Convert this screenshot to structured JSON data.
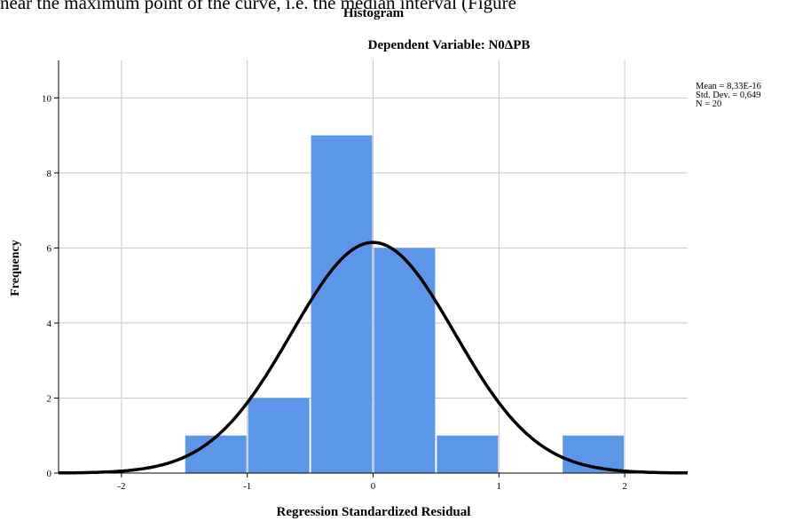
{
  "page": {
    "top_text": "near the maximum point of the curve, i.e. the median interval (Figure"
  },
  "stats": {
    "mean": "Mean = 8,33E-16",
    "std_dev": "Std. Dev. = 0,649",
    "n": "N = 20"
  },
  "colors": {
    "bar_fill": "#5B96E8",
    "curve": "#000000",
    "grid": "#c8c8c8",
    "axis": "#000000"
  },
  "chart_data": {
    "type": "bar",
    "title": "Histogram",
    "subtitle": "Dependent Variable: N0ΔPB",
    "xlabel": "Regression Standardized Residual",
    "ylabel": "Frequency",
    "xlim": [
      -2.5,
      2.5
    ],
    "ylim": [
      0,
      11
    ],
    "x_ticks": [
      -2,
      -1,
      0,
      1,
      2
    ],
    "x_tick_labels": [
      "-2",
      "-1",
      "0",
      "1",
      "2"
    ],
    "y_ticks": [
      0,
      2,
      4,
      6,
      8,
      10
    ],
    "y_tick_labels": [
      "0",
      "2",
      "4",
      "6",
      "8",
      "10"
    ],
    "grid": true,
    "bins": [
      {
        "from": -1.5,
        "to": -1.0,
        "count": 1
      },
      {
        "from": -1.0,
        "to": -0.5,
        "count": 2
      },
      {
        "from": -0.5,
        "to": 0.0,
        "count": 9
      },
      {
        "from": 0.0,
        "to": 0.5,
        "count": 6
      },
      {
        "from": 0.5,
        "to": 1.0,
        "count": 1
      },
      {
        "from": 1.0,
        "to": 1.5,
        "count": 0
      },
      {
        "from": 1.5,
        "to": 2.0,
        "count": 1
      }
    ],
    "normal_curve": {
      "mean": 0,
      "std_dev": 0.649,
      "n": 20,
      "bin_width": 0.5
    }
  }
}
